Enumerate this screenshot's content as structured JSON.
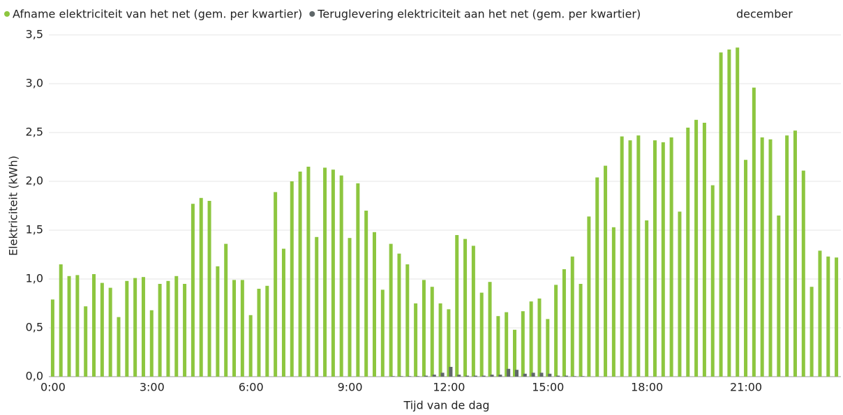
{
  "chart_data": {
    "type": "bar",
    "subtitle": "december",
    "x_label": "Tijd van de dag",
    "y_label": "Elektriciteit (kWh)",
    "categories": [
      "0:00",
      null,
      null,
      null,
      null,
      null,
      null,
      null,
      null,
      null,
      null,
      null,
      "3:00",
      null,
      null,
      null,
      null,
      null,
      null,
      null,
      null,
      null,
      null,
      null,
      "6:00",
      null,
      null,
      null,
      null,
      null,
      null,
      null,
      null,
      null,
      null,
      null,
      "9:00",
      null,
      null,
      null,
      null,
      null,
      null,
      null,
      null,
      null,
      null,
      null,
      "12:00",
      null,
      null,
      null,
      null,
      null,
      null,
      null,
      null,
      null,
      null,
      null,
      "15:00",
      null,
      null,
      null,
      null,
      null,
      null,
      null,
      null,
      null,
      null,
      null,
      "18:00",
      null,
      null,
      null,
      null,
      null,
      null,
      null,
      null,
      null,
      null,
      null,
      "21:00",
      null,
      null,
      null,
      null,
      null,
      null,
      null,
      null,
      null,
      null,
      null
    ],
    "series": [
      {
        "name": "Afname elektriciteit van het net (gem. per kwartier)",
        "color": "#8dc63f",
        "values": [
          0.79,
          1.15,
          1.03,
          1.04,
          0.72,
          1.05,
          0.96,
          0.91,
          0.61,
          0.98,
          1.01,
          1.02,
          0.68,
          0.95,
          0.98,
          1.03,
          0.95,
          1.77,
          1.83,
          1.8,
          1.13,
          1.36,
          0.99,
          0.99,
          0.63,
          0.9,
          0.93,
          1.89,
          1.31,
          2.0,
          2.1,
          2.15,
          1.43,
          2.14,
          2.12,
          2.06,
          1.42,
          1.98,
          1.7,
          1.48,
          0.89,
          1.36,
          1.26,
          1.15,
          0.75,
          0.99,
          0.92,
          0.75,
          0.69,
          1.45,
          1.41,
          1.34,
          0.86,
          0.97,
          0.62,
          0.66,
          0.48,
          0.67,
          0.77,
          0.8,
          0.59,
          0.94,
          1.1,
          1.23,
          0.95,
          1.64,
          2.04,
          2.16,
          1.53,
          2.46,
          2.42,
          2.47,
          1.6,
          2.42,
          2.4,
          2.45,
          1.69,
          2.55,
          2.63,
          2.6,
          1.96,
          3.32,
          3.35,
          3.37,
          2.22,
          2.96,
          2.45,
          2.43,
          1.65,
          2.47,
          2.52,
          2.11,
          0.92,
          1.29,
          1.23,
          1.22
        ]
      },
      {
        "name": "Teruglevering elektriciteit aan het net (gem. per kwartier)",
        "color": "#5f6769",
        "values": [
          0,
          0,
          0,
          0,
          0,
          0,
          0,
          0,
          0,
          0,
          0,
          0,
          0,
          0,
          0,
          0,
          0,
          0,
          0,
          0,
          0,
          0,
          0,
          0,
          0,
          0,
          0,
          0,
          0,
          0,
          0,
          0,
          0,
          0,
          0,
          0,
          0,
          0,
          0,
          0,
          0,
          0.005,
          0.005,
          0.005,
          0.005,
          0.01,
          0.02,
          0.04,
          0.1,
          0.02,
          0.01,
          0.01,
          0.01,
          0.02,
          0.02,
          0.08,
          0.07,
          0.03,
          0.04,
          0.04,
          0.03,
          0.01,
          0.01,
          0.005,
          0.005,
          0,
          0,
          0,
          0,
          0,
          0,
          0,
          0,
          0,
          0,
          0,
          0,
          0,
          0,
          0,
          0,
          0,
          0,
          0,
          0,
          0,
          0,
          0,
          0,
          0,
          0,
          0,
          0,
          0,
          0,
          0
        ]
      }
    ],
    "ylim": [
      0,
      3.5
    ],
    "yticks": [
      {
        "value": 0,
        "label": "0,0"
      },
      {
        "value": 0.5,
        "label": "0,5"
      },
      {
        "value": 1,
        "label": "1,0"
      },
      {
        "value": 1.5,
        "label": "1,5"
      },
      {
        "value": 2,
        "label": "2,0"
      },
      {
        "value": 2.5,
        "label": "2,5"
      },
      {
        "value": 3,
        "label": "3,0"
      },
      {
        "value": 3.5,
        "label": "3,5"
      }
    ],
    "grid": true
  }
}
